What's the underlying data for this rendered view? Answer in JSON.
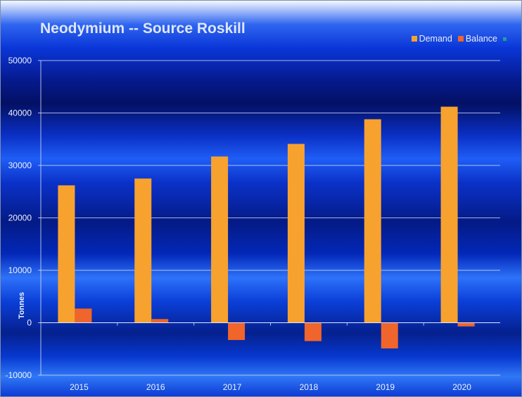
{
  "chart_data": {
    "type": "bar",
    "title": "Neodymium -- Source Roskill",
    "ylabel": "Tonnes",
    "xlabel": "",
    "categories": [
      "2015",
      "2016",
      "2017",
      "2018",
      "2019",
      "2020"
    ],
    "series": [
      {
        "name": "Demand",
        "values": [
          26200,
          27500,
          31700,
          34100,
          38800,
          41200
        ],
        "color": "#f7a22e"
      },
      {
        "name": "Balance",
        "values": [
          2700,
          700,
          -3300,
          -3500,
          -4900,
          -700
        ],
        "color": "#f0652b"
      },
      {
        "name": "",
        "values": [
          null,
          null,
          null,
          null,
          null,
          null
        ],
        "color": "#1aa0a0"
      }
    ],
    "ylim": [
      -10000,
      50000
    ],
    "yticks": [
      "-10000",
      "0",
      "10000",
      "20000",
      "30000",
      "40000",
      "50000"
    ],
    "grid": true,
    "legend_position": "top-right"
  }
}
